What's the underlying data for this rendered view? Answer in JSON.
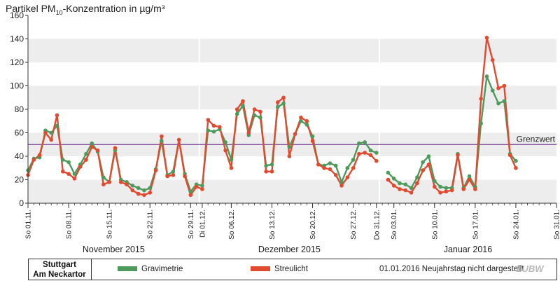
{
  "title": {
    "prefix": "Partikel PM",
    "subscript": "10",
    "suffix": "-Konzentration in µg/m³"
  },
  "chart_data": {
    "type": "line",
    "ylim": [
      0,
      160
    ],
    "y_ticks": [
      0,
      20,
      40,
      60,
      80,
      100,
      120,
      140,
      160
    ],
    "x_start": "2015-11-01",
    "x_end": "2016-01-31",
    "date_tick_labels": [
      {
        "date": "2015-11-01",
        "label": "So 01.11."
      },
      {
        "date": "2015-11-08",
        "label": "So 08.11."
      },
      {
        "date": "2015-11-15",
        "label": "So 15.11."
      },
      {
        "date": "2015-11-22",
        "label": "So 22.11."
      },
      {
        "date": "2015-11-29",
        "label": "So 29.11."
      },
      {
        "date": "2015-12-01",
        "label": "Di 01.12."
      },
      {
        "date": "2015-12-06",
        "label": "So 06.12."
      },
      {
        "date": "2015-12-13",
        "label": "So 13.12."
      },
      {
        "date": "2015-12-20",
        "label": "So 20.12."
      },
      {
        "date": "2015-12-27",
        "label": "So 27.12."
      },
      {
        "date": "2015-12-31",
        "label": "Do 31.12."
      },
      {
        "date": "2016-01-03",
        "label": "So 03.01."
      },
      {
        "date": "2016-01-10",
        "label": "So 10.01."
      },
      {
        "date": "2016-01-17",
        "label": "So 17.01."
      },
      {
        "date": "2016-01-24",
        "label": "So 24.01."
      },
      {
        "date": "2016-01-31",
        "label": "So 31.01."
      }
    ],
    "months": [
      {
        "label": "November 2015",
        "start": "2015-11-01",
        "end": "2015-12-01"
      },
      {
        "label": "Dezember 2015",
        "start": "2015-12-01",
        "end": "2016-01-01"
      },
      {
        "label": "Januar 2016",
        "start": "2016-01-01",
        "end": "2016-02-01"
      }
    ],
    "threshold": {
      "value": 50,
      "label": "Grenzwert",
      "color": "#7a3f98"
    },
    "series": [
      {
        "name": "Gravimetrie",
        "color": "#4e9a5d",
        "segments": [
          [
            [
              "2015-11-01",
              28
            ],
            [
              "2015-11-02",
              38
            ],
            [
              "2015-11-03",
              39
            ],
            [
              "2015-11-04",
              62
            ],
            [
              "2015-11-05",
              60
            ],
            [
              "2015-11-06",
              66
            ],
            [
              "2015-11-07",
              37
            ],
            [
              "2015-11-08",
              35
            ],
            [
              "2015-11-09",
              25
            ],
            [
              "2015-11-10",
              33
            ],
            [
              "2015-11-11",
              42
            ],
            [
              "2015-11-12",
              51
            ],
            [
              "2015-11-13",
              44
            ],
            [
              "2015-11-14",
              22
            ],
            [
              "2015-11-15",
              18
            ],
            [
              "2015-11-16",
              45
            ],
            [
              "2015-11-17",
              20
            ],
            [
              "2015-11-18",
              18
            ],
            [
              "2015-11-19",
              15
            ],
            [
              "2015-11-20",
              13
            ],
            [
              "2015-11-21",
              11
            ],
            [
              "2015-11-22",
              13
            ],
            [
              "2015-11-23",
              29
            ],
            [
              "2015-11-24",
              53
            ],
            [
              "2015-11-25",
              24
            ],
            [
              "2015-11-26",
              27
            ],
            [
              "2015-11-27",
              54
            ],
            [
              "2015-11-28",
              25
            ],
            [
              "2015-11-29",
              10
            ],
            [
              "2015-11-30",
              16
            ],
            [
              "2015-12-01",
              15
            ],
            [
              "2015-12-02",
              62
            ],
            [
              "2015-12-03",
              61
            ],
            [
              "2015-12-04",
              63
            ],
            [
              "2015-12-05",
              52
            ],
            [
              "2015-12-06",
              37
            ],
            [
              "2015-12-07",
              76
            ],
            [
              "2015-12-08",
              83
            ],
            [
              "2015-12-09",
              58
            ],
            [
              "2015-12-10",
              75
            ],
            [
              "2015-12-11",
              73
            ],
            [
              "2015-12-12",
              32
            ],
            [
              "2015-12-13",
              33
            ],
            [
              "2015-12-14",
              82
            ],
            [
              "2015-12-15",
              85
            ],
            [
              "2015-12-16",
              48
            ],
            [
              "2015-12-17",
              59
            ],
            [
              "2015-12-18",
              70
            ],
            [
              "2015-12-19",
              67
            ],
            [
              "2015-12-20",
              57
            ],
            [
              "2015-12-21",
              33
            ],
            [
              "2015-12-22",
              32
            ],
            [
              "2015-12-23",
              34
            ],
            [
              "2015-12-24",
              32
            ],
            [
              "2015-12-25",
              18
            ],
            [
              "2015-12-26",
              30
            ],
            [
              "2015-12-27",
              37
            ],
            [
              "2015-12-28",
              51
            ],
            [
              "2015-12-29",
              52
            ],
            [
              "2015-12-30",
              45
            ],
            [
              "2015-12-31",
              43
            ]
          ],
          [
            [
              "2016-01-02",
              26
            ],
            [
              "2016-01-03",
              21
            ],
            [
              "2016-01-04",
              17
            ],
            [
              "2016-01-05",
              16
            ],
            [
              "2016-01-06",
              13
            ],
            [
              "2016-01-07",
              22
            ],
            [
              "2016-01-08",
              35
            ],
            [
              "2016-01-09",
              40
            ],
            [
              "2016-01-10",
              19
            ],
            [
              "2016-01-11",
              14
            ],
            [
              "2016-01-12",
              13
            ],
            [
              "2016-01-13",
              13
            ],
            [
              "2016-01-14",
              42
            ],
            [
              "2016-01-15",
              13
            ],
            [
              "2016-01-16",
              23
            ],
            [
              "2016-01-17",
              14
            ],
            [
              "2016-01-18",
              68
            ],
            [
              "2016-01-19",
              108
            ],
            [
              "2016-01-20",
              96
            ],
            [
              "2016-01-21",
              85
            ],
            [
              "2016-01-22",
              87
            ],
            [
              "2016-01-23",
              42
            ],
            [
              "2016-01-24",
              36
            ]
          ]
        ]
      },
      {
        "name": "Streulicht",
        "color": "#e04a2f",
        "segments": [
          [
            [
              "2015-11-01",
              24
            ],
            [
              "2015-11-02",
              37
            ],
            [
              "2015-11-03",
              41
            ],
            [
              "2015-11-04",
              60
            ],
            [
              "2015-11-05",
              54
            ],
            [
              "2015-11-06",
              75
            ],
            [
              "2015-11-07",
              27
            ],
            [
              "2015-11-08",
              25
            ],
            [
              "2015-11-09",
              21
            ],
            [
              "2015-11-10",
              31
            ],
            [
              "2015-11-11",
              37
            ],
            [
              "2015-11-12",
              48
            ],
            [
              "2015-11-13",
              45
            ],
            [
              "2015-11-14",
              16
            ],
            [
              "2015-11-15",
              18
            ],
            [
              "2015-11-16",
              47
            ],
            [
              "2015-11-17",
              18
            ],
            [
              "2015-11-18",
              16
            ],
            [
              "2015-11-19",
              11
            ],
            [
              "2015-11-20",
              8
            ],
            [
              "2015-11-21",
              7
            ],
            [
              "2015-11-22",
              9
            ],
            [
              "2015-11-23",
              28
            ],
            [
              "2015-11-24",
              57
            ],
            [
              "2015-11-25",
              23
            ],
            [
              "2015-11-26",
              24
            ],
            [
              "2015-11-27",
              54
            ],
            [
              "2015-11-28",
              23
            ],
            [
              "2015-11-29",
              7
            ],
            [
              "2015-11-30",
              14
            ],
            [
              "2015-12-01",
              12
            ],
            [
              "2015-12-02",
              71
            ],
            [
              "2015-12-03",
              66
            ],
            [
              "2015-12-04",
              65
            ],
            [
              "2015-12-05",
              45
            ],
            [
              "2015-12-06",
              30
            ],
            [
              "2015-12-07",
              80
            ],
            [
              "2015-12-08",
              87
            ],
            [
              "2015-12-09",
              60
            ],
            [
              "2015-12-10",
              80
            ],
            [
              "2015-12-11",
              78
            ],
            [
              "2015-12-12",
              27
            ],
            [
              "2015-12-13",
              27
            ],
            [
              "2015-12-14",
              86
            ],
            [
              "2015-12-15",
              90
            ],
            [
              "2015-12-16",
              40
            ],
            [
              "2015-12-17",
              59
            ],
            [
              "2015-12-18",
              73
            ],
            [
              "2015-12-19",
              70
            ],
            [
              "2015-12-20",
              53
            ],
            [
              "2015-12-21",
              33
            ],
            [
              "2015-12-22",
              30
            ],
            [
              "2015-12-23",
              29
            ],
            [
              "2015-12-24",
              24
            ],
            [
              "2015-12-25",
              15
            ],
            [
              "2015-12-26",
              22
            ],
            [
              "2015-12-27",
              30
            ],
            [
              "2015-12-28",
              42
            ],
            [
              "2015-12-29",
              43
            ],
            [
              "2015-12-30",
              41
            ],
            [
              "2015-12-31",
              36
            ]
          ],
          [
            [
              "2016-01-02",
              20
            ],
            [
              "2016-01-03",
              15
            ],
            [
              "2016-01-04",
              12
            ],
            [
              "2016-01-05",
              11
            ],
            [
              "2016-01-06",
              9
            ],
            [
              "2016-01-07",
              17
            ],
            [
              "2016-01-08",
              28
            ],
            [
              "2016-01-09",
              33
            ],
            [
              "2016-01-10",
              14
            ],
            [
              "2016-01-11",
              9
            ],
            [
              "2016-01-12",
              10
            ],
            [
              "2016-01-13",
              11
            ],
            [
              "2016-01-14",
              41
            ],
            [
              "2016-01-15",
              12
            ],
            [
              "2016-01-16",
              20
            ],
            [
              "2016-01-17",
              12
            ],
            [
              "2016-01-18",
              89
            ],
            [
              "2016-01-19",
              141
            ],
            [
              "2016-01-20",
              122
            ],
            [
              "2016-01-21",
              98
            ],
            [
              "2016-01-22",
              100
            ],
            [
              "2016-01-23",
              41
            ],
            [
              "2016-01-24",
              30
            ]
          ]
        ]
      }
    ]
  },
  "footer": {
    "station_line1": "Stuttgart",
    "station_line2": "Am Neckartor",
    "legend": [
      {
        "label": "Gravimetrie",
        "color": "#4e9a5d"
      },
      {
        "label": "Streulicht",
        "color": "#e04a2f"
      }
    ],
    "note": "01.01.2016 Neujahrstag nicht dargestellt",
    "logo": "LUBW"
  }
}
